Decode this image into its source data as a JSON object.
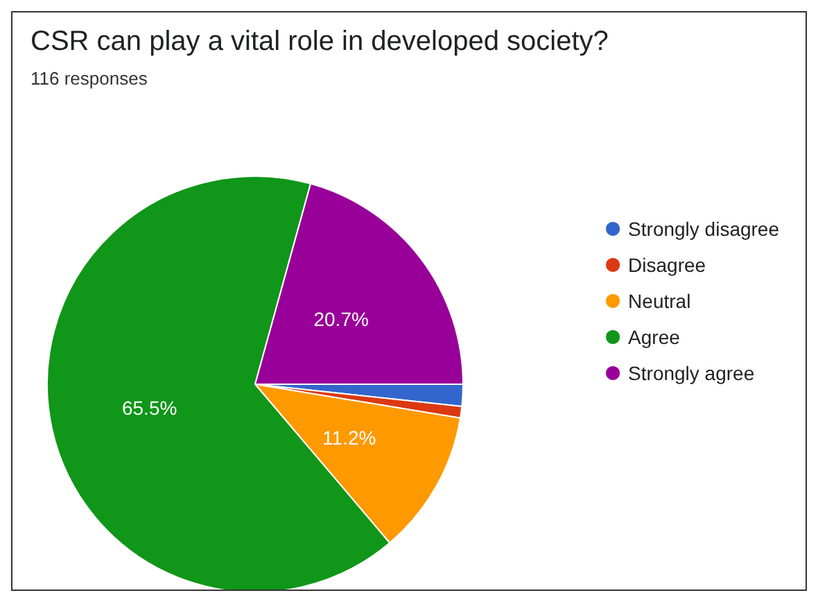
{
  "chart_data": {
    "type": "pie",
    "title": "CSR can play a vital role in developed society?",
    "subtitle": "116 responses",
    "categories": [
      "Strongly disagree",
      "Disagree",
      "Neutral",
      "Agree",
      "Strongly agree"
    ],
    "values": [
      1.7,
      0.9,
      11.2,
      65.5,
      20.7
    ],
    "colors": [
      "#3366cc",
      "#dc3912",
      "#ff9900",
      "#109618",
      "#990099"
    ],
    "value_labels": [
      null,
      null,
      "11.2%",
      "65.5%",
      "20.7%"
    ],
    "legend": "right"
  }
}
